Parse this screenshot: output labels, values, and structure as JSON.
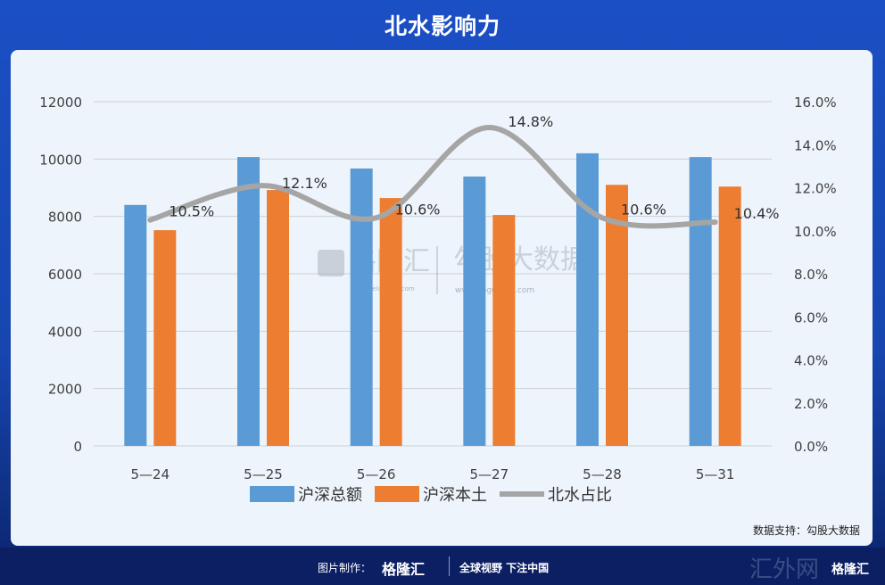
{
  "title": "北水影响力",
  "chart_data": {
    "type": "bar",
    "title": "北水影响力",
    "categories": [
      "5—24",
      "5—25",
      "5—26",
      "5—27",
      "5—28",
      "5—31"
    ],
    "series": [
      {
        "name": "沪深总额",
        "type": "bar",
        "axis": "left",
        "color": "#5b9bd5",
        "values": [
          8400,
          10070,
          9670,
          9390,
          10200,
          10070
        ]
      },
      {
        "name": "沪深本土",
        "type": "bar",
        "axis": "left",
        "color": "#ed7d31",
        "values": [
          7520,
          8920,
          8640,
          8050,
          9100,
          9040
        ]
      },
      {
        "name": "北水占比",
        "type": "line",
        "axis": "right",
        "color": "#a5a5a5",
        "values": [
          10.5,
          12.1,
          10.6,
          14.8,
          10.6,
          10.4
        ],
        "labels": [
          "10.5%",
          "12.1%",
          "10.6%",
          "14.8%",
          "10.6%",
          "10.4%"
        ]
      }
    ],
    "ylim": [
      0,
      12000
    ],
    "yticks": [
      "0",
      "2000",
      "4000",
      "6000",
      "8000",
      "10000",
      "12000"
    ],
    "y2lim": [
      0,
      16
    ],
    "y2ticks": [
      "0.0%",
      "2.0%",
      "4.0%",
      "6.0%",
      "8.0%",
      "10.0%",
      "12.0%",
      "14.0%",
      "16.0%"
    ],
    "grid": true,
    "legend": "bottom"
  },
  "watermark": {
    "left": "格隆汇",
    "left_url": "www.gelonghui.com",
    "right": "勾股大数据",
    "right_url": "www.gogudata.com"
  },
  "source": "数据支持：勾股大数据",
  "footer": {
    "made_by": "图片制作：",
    "brand": "格隆汇",
    "slogan": "全球视野 下注中国",
    "corner": "格隆汇",
    "corner_wm": "汇外网"
  }
}
